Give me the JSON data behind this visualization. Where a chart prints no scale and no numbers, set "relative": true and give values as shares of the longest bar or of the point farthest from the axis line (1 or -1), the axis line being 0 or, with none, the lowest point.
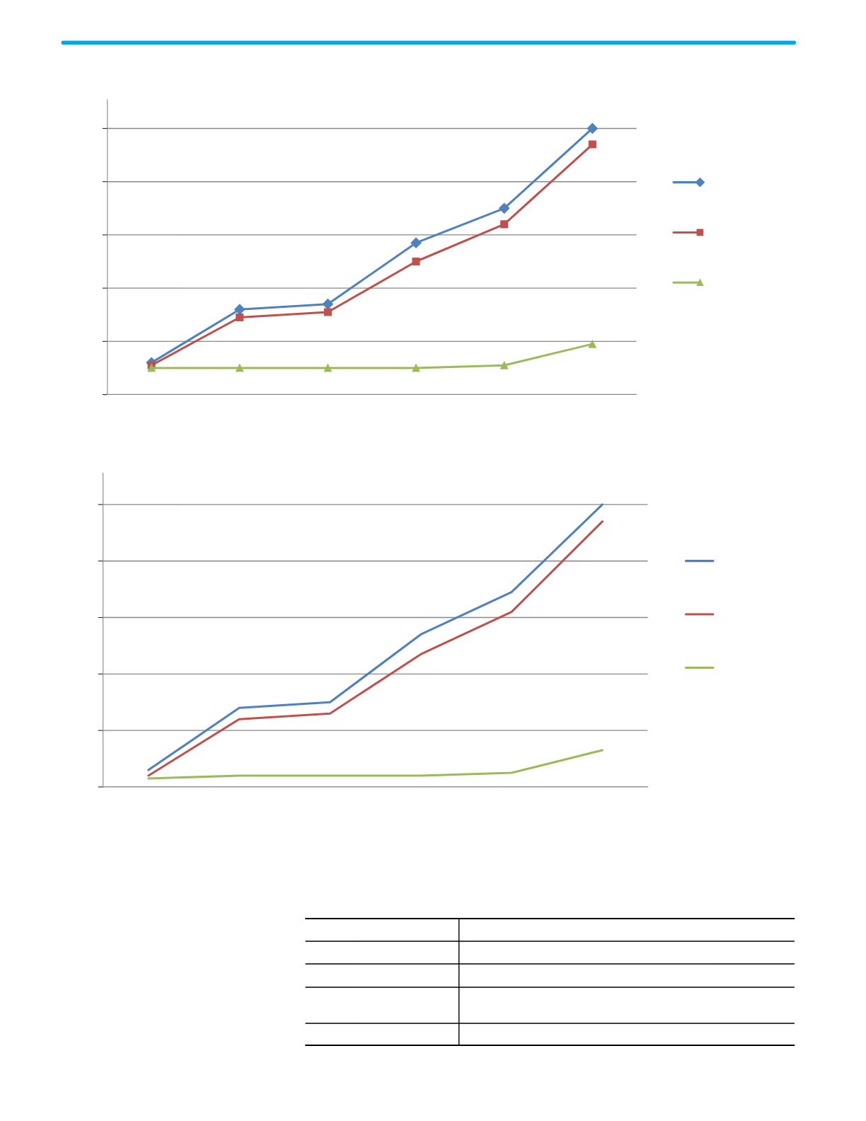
{
  "chart_data": [
    {
      "type": "line",
      "relative": true,
      "categories": [
        null,
        null,
        null,
        null,
        null,
        null
      ],
      "grid": "y",
      "series": [
        {
          "color": "#4f81bd",
          "marker": "diamond",
          "values": [
            0.12,
            0.32,
            0.34,
            0.57,
            0.7,
            1.0
          ]
        },
        {
          "color": "#c0504d",
          "marker": "square",
          "values": [
            0.11,
            0.29,
            0.31,
            0.5,
            0.64,
            0.94
          ]
        },
        {
          "color": "#9bbb59",
          "marker": "triangle",
          "values": [
            0.1,
            0.1,
            0.1,
            0.1,
            0.11,
            0.19
          ]
        }
      ]
    },
    {
      "type": "line",
      "relative": true,
      "categories": [
        null,
        null,
        null,
        null,
        null,
        null
      ],
      "grid": "y",
      "series": [
        {
          "color": "#4f81bd",
          "values": [
            0.06,
            0.28,
            0.3,
            0.54,
            0.69,
            1.0
          ]
        },
        {
          "color": "#c0504d",
          "values": [
            0.04,
            0.24,
            0.26,
            0.47,
            0.62,
            0.94
          ]
        },
        {
          "color": "#9bbb59",
          "values": [
            0.03,
            0.04,
            0.04,
            0.04,
            0.05,
            0.13
          ]
        }
      ]
    }
  ]
}
